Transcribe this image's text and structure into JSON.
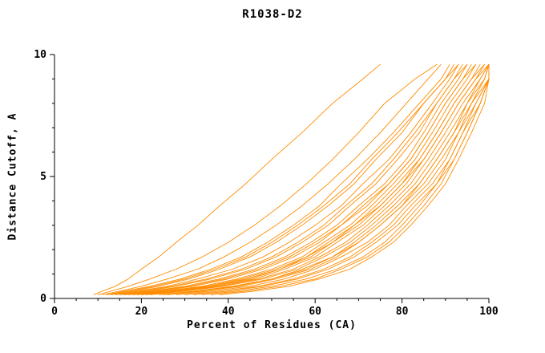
{
  "figure": {
    "title": "R1038-D2",
    "xlabel": "Percent of Residues (CA)",
    "ylabel": "Distance Cutoff, A"
  },
  "chart_data": {
    "type": "line",
    "title": "R1038-D2",
    "xlabel": "Percent of Residues (CA)",
    "ylabel": "Distance Cutoff, A",
    "xlim": [
      0,
      100
    ],
    "ylim": [
      0,
      10
    ],
    "x_ticks": [
      0,
      20,
      40,
      60,
      80,
      100
    ],
    "y_ticks": [
      0,
      5,
      10
    ],
    "x_minor_step": 5,
    "y_minor_step": 1,
    "grid": false,
    "legend": "none",
    "line_color": "#ff8c00",
    "y_levels": [
      0.15,
      0.3,
      0.5,
      0.8,
      1.2,
      1.7,
      2.3,
      3.0,
      3.8,
      4.7,
      5.7,
      6.8,
      8.0,
      9.0,
      9.6
    ],
    "series": [
      {
        "x": [
          9,
          11,
          14,
          17,
          20,
          24,
          28,
          33,
          38,
          44,
          50,
          57,
          64,
          71,
          75
        ]
      },
      {
        "x": [
          10,
          13,
          17,
          22,
          28,
          34,
          40,
          46,
          52,
          58,
          64,
          70,
          76,
          83,
          88
        ]
      },
      {
        "x": [
          11,
          15,
          20,
          26,
          33,
          39,
          45,
          51,
          57,
          63,
          69,
          75,
          81,
          86,
          89
        ]
      },
      {
        "x": [
          12,
          16,
          22,
          29,
          36,
          43,
          49,
          55,
          61,
          66,
          72,
          78,
          84,
          89,
          91
        ]
      },
      {
        "x": [
          13,
          18,
          24,
          31,
          38,
          45,
          51,
          57,
          63,
          69,
          74,
          80,
          85,
          90,
          92
        ]
      },
      {
        "x": [
          14,
          19,
          26,
          33,
          41,
          48,
          54,
          60,
          66,
          71,
          77,
          82,
          87,
          91,
          93
        ]
      },
      {
        "x": [
          15,
          21,
          28,
          36,
          44,
          51,
          57,
          63,
          68,
          74,
          79,
          84,
          88,
          92,
          94
        ]
      },
      {
        "x": [
          16,
          22,
          30,
          38,
          46,
          53,
          59,
          65,
          70,
          76,
          81,
          85,
          89,
          93,
          95
        ]
      },
      {
        "x": [
          17,
          24,
          32,
          40,
          48,
          55,
          61,
          66,
          72,
          77,
          82,
          86,
          90,
          94,
          96
        ]
      },
      {
        "x": [
          18,
          25,
          34,
          42,
          50,
          57,
          62,
          68,
          73,
          78,
          83,
          87,
          91,
          95,
          97
        ]
      },
      {
        "x": [
          19,
          27,
          36,
          44,
          52,
          58,
          64,
          69,
          75,
          80,
          84,
          88,
          92,
          96,
          98
        ]
      },
      {
        "x": [
          20,
          28,
          37,
          46,
          53,
          60,
          65,
          71,
          76,
          81,
          85,
          89,
          93,
          97,
          99
        ]
      },
      {
        "x": [
          21,
          29,
          38,
          47,
          55,
          61,
          67,
          72,
          77,
          82,
          86,
          90,
          94,
          98,
          100
        ]
      },
      {
        "x": [
          22,
          30,
          39,
          48,
          56,
          62,
          68,
          73,
          78,
          83,
          87,
          91,
          95,
          99,
          100
        ]
      },
      {
        "x": [
          24,
          32,
          41,
          50,
          57,
          64,
          69,
          74,
          79,
          84,
          88,
          92,
          96,
          99,
          100
        ]
      },
      {
        "x": [
          26,
          34,
          43,
          51,
          59,
          65,
          70,
          75,
          80,
          85,
          89,
          93,
          96,
          100,
          100
        ]
      },
      {
        "x": [
          28,
          36,
          45,
          53,
          60,
          66,
          72,
          77,
          81,
          86,
          90,
          93,
          97,
          100,
          100
        ]
      },
      {
        "x": [
          30,
          38,
          47,
          55,
          62,
          68,
          73,
          78,
          82,
          87,
          91,
          94,
          97,
          100,
          100
        ]
      },
      {
        "x": [
          32,
          40,
          48,
          56,
          63,
          69,
          74,
          79,
          83,
          88,
          91,
          94,
          98,
          100,
          100
        ]
      },
      {
        "x": [
          34,
          42,
          50,
          58,
          65,
          71,
          76,
          80,
          84,
          88,
          92,
          95,
          98,
          100,
          100
        ]
      },
      {
        "x": [
          36,
          44,
          52,
          60,
          66,
          72,
          77,
          81,
          85,
          89,
          92,
          95,
          98,
          100,
          100
        ]
      },
      {
        "x": [
          38,
          46,
          54,
          61,
          68,
          73,
          78,
          82,
          86,
          90,
          93,
          96,
          99,
          100,
          100
        ]
      },
      {
        "x": [
          12,
          17,
          23,
          30,
          37,
          44,
          50,
          56,
          62,
          68,
          73,
          79,
          85,
          90,
          93
        ]
      },
      {
        "x": [
          14,
          20,
          27,
          35,
          43,
          50,
          56,
          62,
          67,
          73,
          78,
          83,
          88,
          92,
          95
        ]
      },
      {
        "x": [
          16,
          23,
          31,
          39,
          47,
          54,
          60,
          66,
          71,
          77,
          82,
          86,
          90,
          94,
          97
        ]
      },
      {
        "x": [
          18,
          26,
          35,
          43,
          51,
          58,
          63,
          69,
          74,
          79,
          84,
          88,
          92,
          96,
          99
        ]
      },
      {
        "x": [
          20,
          28,
          36,
          45,
          52,
          59,
          64,
          70,
          75,
          80,
          85,
          89,
          93,
          97,
          100
        ]
      },
      {
        "x": [
          25,
          33,
          42,
          50,
          58,
          64,
          70,
          75,
          80,
          84,
          88,
          92,
          95,
          98,
          100
        ]
      }
    ]
  }
}
